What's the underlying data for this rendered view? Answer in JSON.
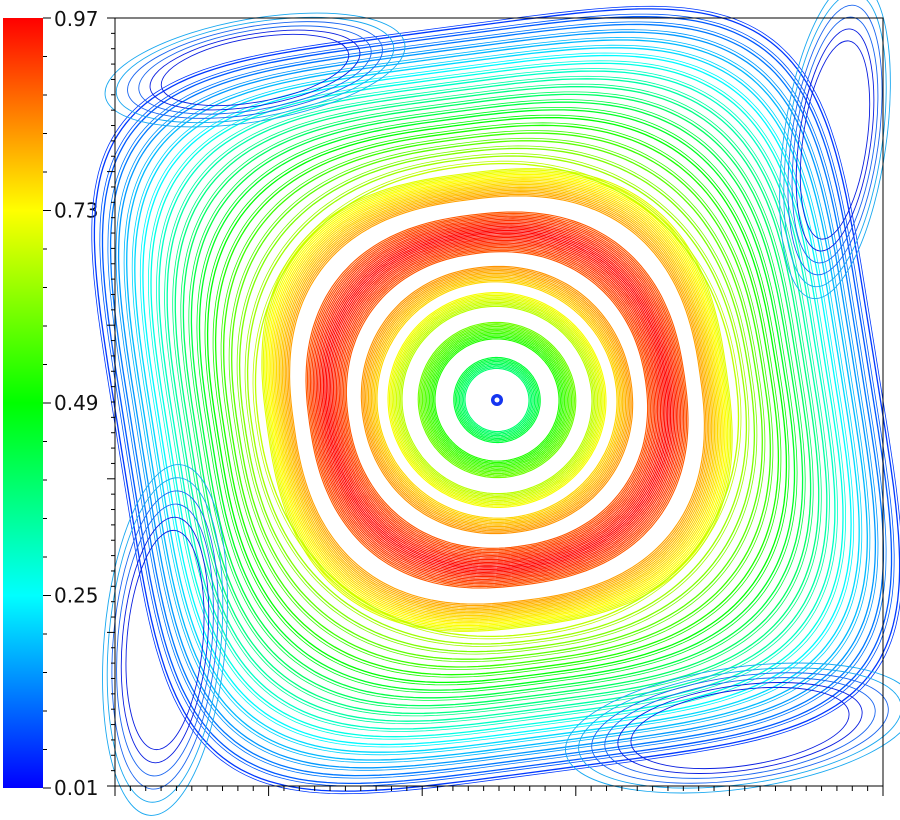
{
  "colorbar": {
    "ticks": [
      "0.97",
      "0.73",
      "0.49",
      "0.25",
      "0.01"
    ],
    "tick_values": [
      0.97,
      0.73,
      0.49,
      0.25,
      0.01
    ],
    "min": 0.01,
    "max": 0.97,
    "colormap": [
      "#0000ff",
      "#00ffff",
      "#00ff00",
      "#ffff00",
      "#ff0000"
    ]
  },
  "plot": {
    "type": "streamlines",
    "colors": {
      "frame": "#000000",
      "outer": "#0a1fe0",
      "center": "#00dde6"
    }
  }
}
